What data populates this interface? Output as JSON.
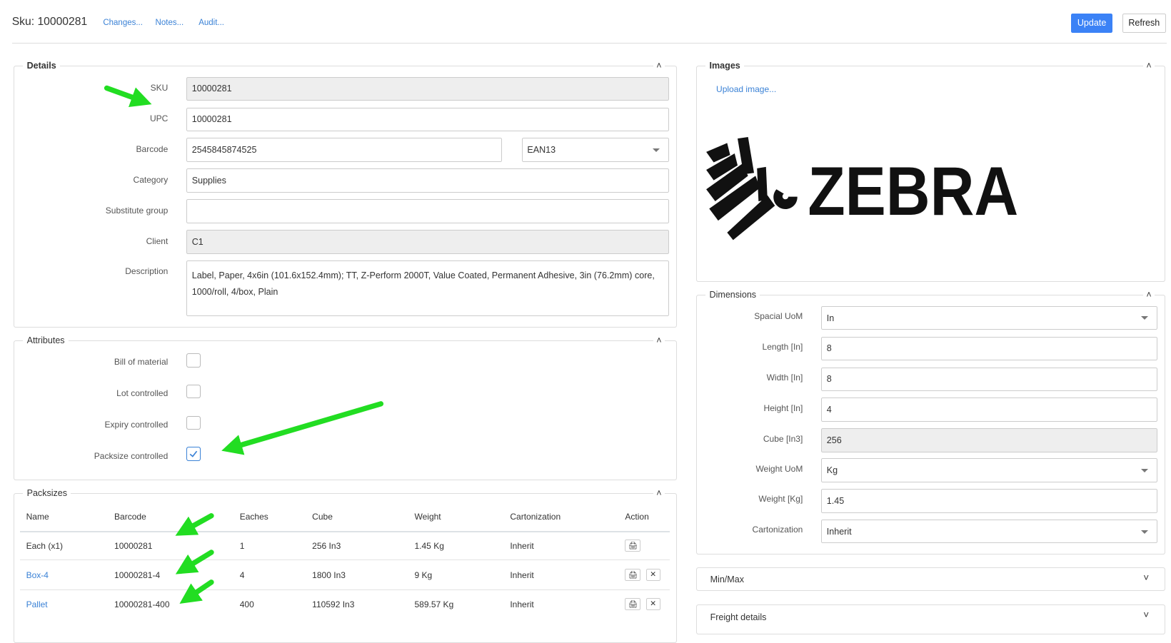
{
  "header": {
    "title": "Sku: 10000281",
    "links": [
      "Changes...",
      "Notes...",
      "Audit..."
    ],
    "update_label": "Update",
    "refresh_label": "Refresh"
  },
  "colors": {
    "accent": "#3b82d6",
    "annotation_arrow": "#22dd22"
  },
  "details": {
    "legend": "Details",
    "fields": {
      "sku": {
        "label": "SKU",
        "value": "10000281",
        "readonly": true
      },
      "upc": {
        "label": "UPC",
        "value": "10000281"
      },
      "barcode": {
        "label": "Barcode",
        "value": "2545845874525",
        "type": "EAN13"
      },
      "category": {
        "label": "Category",
        "value": "Supplies"
      },
      "substitute": {
        "label": "Substitute group",
        "value": ""
      },
      "client": {
        "label": "Client",
        "value": "C1",
        "readonly": true
      },
      "description": {
        "label": "Description",
        "value": "Label, Paper, 4x6in (101.6x152.4mm); TT, Z-Perform 2000T, Value Coated, Permanent Adhesive, 3in (76.2mm) core, 1000/roll, 4/box, Plain"
      }
    }
  },
  "attributes": {
    "legend": "Attributes",
    "items": [
      {
        "label": "Bill of material",
        "checked": false
      },
      {
        "label": "Lot controlled",
        "checked": false
      },
      {
        "label": "Expiry controlled",
        "checked": false
      },
      {
        "label": "Packsize controlled",
        "checked": true
      }
    ]
  },
  "packsizes": {
    "legend": "Packsizes",
    "columns": [
      "Name",
      "Barcode",
      "Eaches",
      "Cube",
      "Weight",
      "Cartonization",
      "Action"
    ],
    "rows": [
      {
        "name": "Each (x1)",
        "barcode": "10000281",
        "eaches": "1",
        "cube": "256 In3",
        "weight": "1.45 Kg",
        "cartonization": "Inherit",
        "link": false,
        "deletable": false
      },
      {
        "name": "Box-4",
        "barcode": "10000281-4",
        "eaches": "4",
        "cube": "1800 In3",
        "weight": "9 Kg",
        "cartonization": "Inherit",
        "link": true,
        "deletable": true
      },
      {
        "name": "Pallet",
        "barcode": "10000281-400",
        "eaches": "400",
        "cube": "110592 In3",
        "weight": "589.57 Kg",
        "cartonization": "Inherit",
        "link": true,
        "deletable": true
      }
    ]
  },
  "images": {
    "legend": "Images",
    "upload_label": "Upload image...",
    "logo_text": "ZEBRA"
  },
  "dimensions": {
    "legend": "Dimensions",
    "fields": [
      {
        "label": "Spacial UoM",
        "value": "In",
        "select": true
      },
      {
        "label": "Length [In]",
        "value": "8"
      },
      {
        "label": "Width [In]",
        "value": "8"
      },
      {
        "label": "Height [In]",
        "value": "4"
      },
      {
        "label": "Cube [In3]",
        "value": "256",
        "readonly": true
      },
      {
        "label": "Weight UoM",
        "value": "Kg",
        "select": true
      },
      {
        "label": "Weight [Kg]",
        "value": "1.45"
      },
      {
        "label": "Cartonization",
        "value": "Inherit",
        "select": true
      }
    ]
  },
  "minmax": {
    "label": "Min/Max"
  },
  "freight": {
    "label": "Freight details"
  }
}
